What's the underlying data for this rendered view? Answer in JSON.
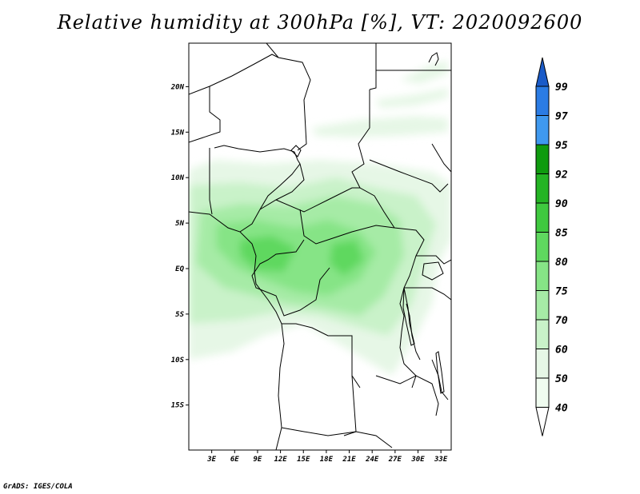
{
  "title": "Relative humidity at 300hPa [%], VT: 2020092600",
  "credit": "GrADS: IGES/COLA",
  "map": {
    "lat_labels": [
      "20N",
      "15N",
      "10N",
      "5N",
      "EQ",
      "5S",
      "10S",
      "15S"
    ],
    "lon_labels": [
      "3E",
      "6E",
      "9E",
      "12E",
      "15E",
      "18E",
      "21E",
      "24E",
      "27E",
      "30E",
      "33E"
    ],
    "lat_range": [
      -20,
      25
    ],
    "lon_range": [
      0,
      34
    ]
  },
  "colorbar": {
    "levels": [
      "40",
      "50",
      "60",
      "70",
      "75",
      "80",
      "85",
      "90",
      "92",
      "95",
      "97",
      "99"
    ],
    "colors": [
      "#f0fcf0",
      "#e6f7e6",
      "#c9f2c9",
      "#a6eba6",
      "#86e486",
      "#5fd85f",
      "#3fc93f",
      "#24b424",
      "#0f9b0f",
      "#3f99ef",
      "#2b7ce4",
      "#1a5bc8"
    ]
  }
}
